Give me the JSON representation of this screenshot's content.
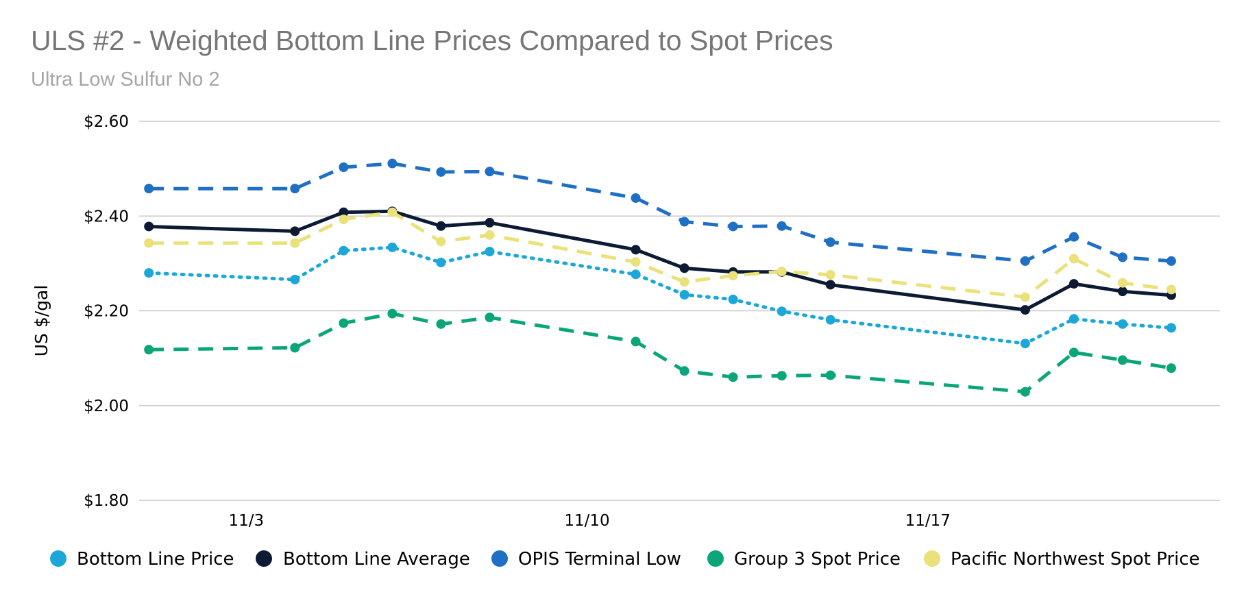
{
  "chart_data": {
    "type": "line",
    "title": "ULS #2 - Weighted Bottom Line Prices Compared to Spot Prices",
    "subtitle": "Ultra Low Sulfur No 2",
    "xlabel": "",
    "ylabel": "US $/gal",
    "ylim": [
      1.8,
      2.6
    ],
    "y_ticks": [
      1.8,
      2.0,
      2.2,
      2.4,
      2.6
    ],
    "y_tick_labels": [
      "$1.80",
      "$2.00",
      "$2.20",
      "$2.40",
      "$2.60"
    ],
    "xlim": [
      0.8,
      23.0
    ],
    "x_ticks": [
      3,
      10,
      17
    ],
    "x_tick_labels": [
      "11/3",
      "11/10",
      "11/17"
    ],
    "x": [
      1,
      4,
      5,
      6,
      7,
      8,
      11,
      12,
      13,
      14,
      15,
      19,
      20,
      21,
      22
    ],
    "grid": true,
    "legend_position": "bottom",
    "series": [
      {
        "name": "Bottom Line Price",
        "color": "#1ba7d8",
        "style": "dotted",
        "values": [
          2.28,
          2.266,
          2.327,
          2.334,
          2.302,
          2.325,
          2.277,
          2.234,
          2.224,
          2.199,
          2.181,
          2.131,
          2.183,
          2.172,
          2.164
        ]
      },
      {
        "name": "Bottom Line Average",
        "color": "#0c1b33",
        "style": "solid",
        "values": [
          2.378,
          2.368,
          2.408,
          2.41,
          2.379,
          2.386,
          2.329,
          2.29,
          2.282,
          2.282,
          2.255,
          2.202,
          2.257,
          2.241,
          2.233
        ]
      },
      {
        "name": "OPIS Terminal Low",
        "color": "#1f6fc4",
        "style": "dashed",
        "values": [
          2.458,
          2.458,
          2.503,
          2.511,
          2.493,
          2.494,
          2.438,
          2.388,
          2.378,
          2.379,
          2.345,
          2.305,
          2.356,
          2.313,
          2.305
        ]
      },
      {
        "name": "Group 3 Spot Price",
        "color": "#0aa578",
        "style": "dashed",
        "values": [
          2.118,
          2.122,
          2.174,
          2.194,
          2.172,
          2.186,
          2.135,
          2.073,
          2.06,
          2.063,
          2.064,
          2.029,
          2.112,
          2.096,
          2.079
        ]
      },
      {
        "name": "Pacific Northwest Spot Price",
        "color": "#ebe17b",
        "style": "dashed",
        "values": [
          2.343,
          2.343,
          2.393,
          2.408,
          2.346,
          2.36,
          2.303,
          2.261,
          2.274,
          2.283,
          2.276,
          2.229,
          2.31,
          2.259,
          2.245
        ]
      }
    ]
  }
}
